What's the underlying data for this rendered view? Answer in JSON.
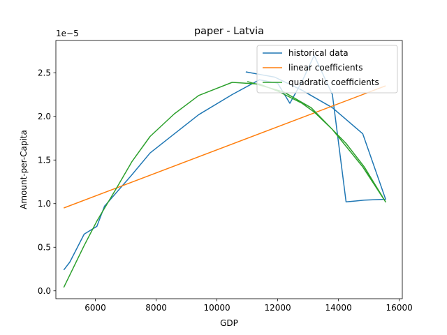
{
  "chart_data": {
    "type": "line",
    "title": "paper - Latvia",
    "xlabel": "GDP",
    "ylabel": "Amount-per-Capita",
    "y_offset_label": "1e−5",
    "xlim": [
      4700,
      16100
    ],
    "ylim": [
      -0.09,
      2.87
    ],
    "x_ticks": [
      6000,
      8000,
      10000,
      12000,
      14000,
      16000
    ],
    "x_tick_labels": [
      "6000",
      "8000",
      "10000",
      "12000",
      "14000",
      "16000"
    ],
    "y_ticks": [
      0.0,
      0.5,
      1.0,
      1.5,
      2.0,
      2.5
    ],
    "y_tick_labels": [
      "0.0",
      "0.5",
      "1.0",
      "1.5",
      "2.0",
      "2.5"
    ],
    "grid": false,
    "legend_position": "top-right",
    "series": [
      {
        "name": "historical data",
        "color": "#1f77b4",
        "x": [
          4960,
          5160,
          5630,
          6050,
          6300,
          7200,
          7800,
          8600,
          9400,
          10500,
          11400,
          12000,
          12400,
          12800,
          13200,
          13800,
          14250,
          14850,
          15550,
          14800,
          13800,
          12800,
          11900,
          10950
        ],
        "y": [
          0.24,
          0.33,
          0.65,
          0.74,
          0.97,
          1.33,
          1.58,
          1.8,
          2.02,
          2.25,
          2.42,
          2.38,
          2.15,
          2.4,
          2.7,
          2.25,
          1.02,
          1.04,
          1.05,
          1.8,
          2.1,
          2.3,
          2.45,
          2.51
        ]
      },
      {
        "name": "linear coefficients",
        "color": "#ff7f0e",
        "x": [
          4960,
          15550
        ],
        "y": [
          0.95,
          2.35
        ]
      },
      {
        "name": "quadratic coefficients",
        "color": "#2ca02c",
        "x": [
          4960,
          5630,
          6050,
          6700,
          7200,
          7800,
          8600,
          9400,
          10500,
          11400,
          12000,
          12800,
          13200,
          13800,
          14250,
          14850,
          15550,
          14800,
          13800,
          13100,
          12200,
          11000
        ],
        "y": [
          0.04,
          0.52,
          0.8,
          1.18,
          1.48,
          1.77,
          2.03,
          2.24,
          2.39,
          2.37,
          2.29,
          2.15,
          2.05,
          1.85,
          1.69,
          1.42,
          1.02,
          1.42,
          1.85,
          2.1,
          2.28,
          2.4
        ]
      }
    ]
  }
}
